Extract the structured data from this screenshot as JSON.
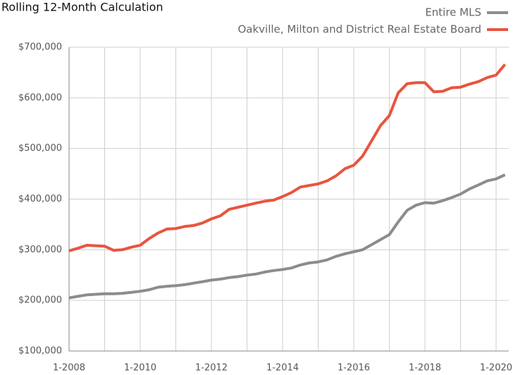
{
  "chart_data": {
    "type": "line",
    "title": "Rolling 12-Month Calculation",
    "categories": [
      "1-2008",
      null,
      null,
      null,
      null,
      null,
      null,
      null,
      "1-2010",
      null,
      null,
      null,
      null,
      null,
      null,
      null,
      "1-2012",
      null,
      null,
      null,
      null,
      null,
      null,
      null,
      "1-2014",
      null,
      null,
      null,
      null,
      null,
      null,
      null,
      "1-2016",
      null,
      null,
      null,
      null,
      null,
      null,
      null,
      "1-2018",
      null,
      null,
      null,
      null,
      null,
      null,
      null,
      "1-2020",
      null
    ],
    "series": [
      {
        "name": "Entire MLS",
        "color": "#8c8c8e",
        "values": [
          205000,
          208000,
          211000,
          212000,
          213000,
          213000,
          214000,
          216000,
          218000,
          221000,
          226000,
          228000,
          229000,
          231000,
          234000,
          237000,
          240000,
          242000,
          245000,
          247000,
          250000,
          252000,
          256000,
          259000,
          261000,
          264000,
          270000,
          274000,
          276000,
          280000,
          287000,
          292000,
          296000,
          300000,
          310000,
          320000,
          330000,
          355000,
          378000,
          388000,
          393000,
          392000,
          397000,
          403000,
          410000,
          420000,
          428000,
          436000,
          440000,
          448000
        ]
      },
      {
        "name": "Oakville, Milton and District Real Estate Board",
        "color": "#e8553e",
        "values": [
          298000,
          303000,
          309000,
          308000,
          307000,
          299000,
          300000,
          305000,
          309000,
          322000,
          333000,
          341000,
          342000,
          346000,
          348000,
          353000,
          361000,
          367000,
          380000,
          384000,
          388000,
          392000,
          396000,
          398000,
          405000,
          413000,
          424000,
          427000,
          430000,
          436000,
          446000,
          460000,
          467000,
          485000,
          515000,
          545000,
          565000,
          610000,
          628000,
          630000,
          630000,
          612000,
          613000,
          620000,
          621000,
          627000,
          632000,
          640000,
          645000,
          666000
        ]
      }
    ],
    "ylim": [
      100000,
      700000
    ],
    "yticks": [
      {
        "value": 100000,
        "label": "$100,000"
      },
      {
        "value": 200000,
        "label": "$200,000"
      },
      {
        "value": 300000,
        "label": "$300,000"
      },
      {
        "value": 400000,
        "label": "$400,000"
      },
      {
        "value": 500000,
        "label": "$500,000"
      },
      {
        "value": 600000,
        "label": "$600,000"
      },
      {
        "value": 700000,
        "label": "$700,000"
      }
    ],
    "grid": true,
    "legend": "top-right"
  }
}
